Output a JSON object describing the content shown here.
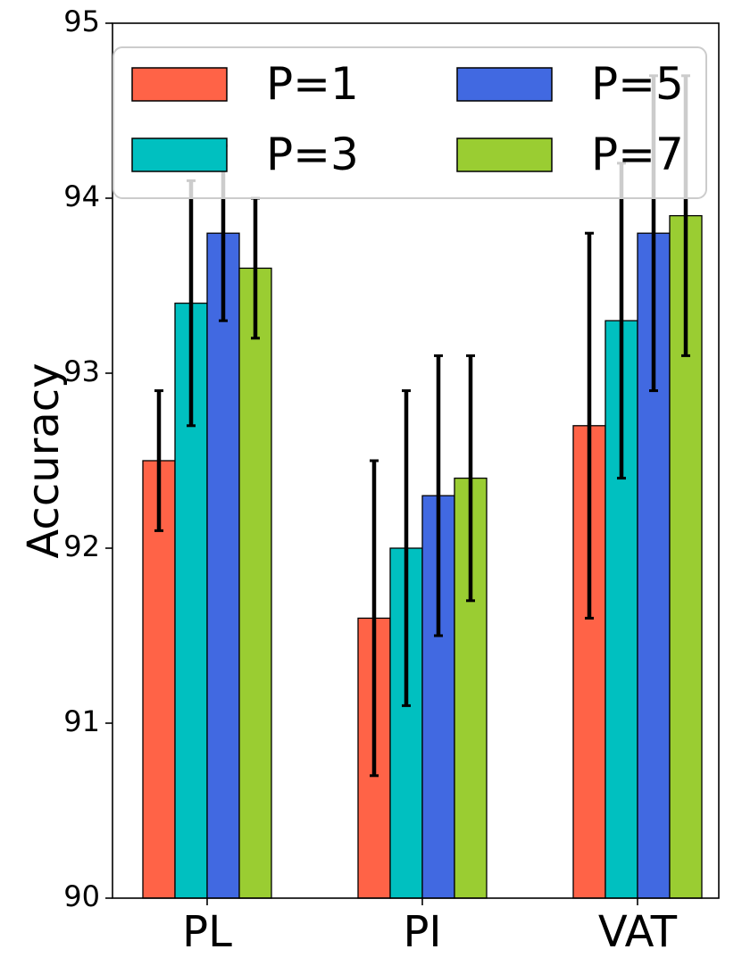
{
  "chart_data": {
    "type": "bar",
    "title": "",
    "xlabel": "",
    "ylabel": "Accuracy",
    "ylim": [
      90,
      95
    ],
    "yticks": [
      "90",
      "91",
      "92",
      "93",
      "94",
      "95"
    ],
    "categories": [
      "PL",
      "PI",
      "VAT"
    ],
    "series": [
      {
        "name": "P=1",
        "color": "#ff6347",
        "values": [
          92.5,
          91.6,
          92.7
        ],
        "errors": [
          0.4,
          0.9,
          1.1
        ]
      },
      {
        "name": "P=3",
        "color": "#00c0c0",
        "values": [
          93.4,
          92.0,
          93.3
        ],
        "errors": [
          0.7,
          0.9,
          0.9
        ]
      },
      {
        "name": "P=5",
        "color": "#4169e1",
        "values": [
          93.8,
          92.3,
          93.8
        ],
        "errors": [
          0.5,
          0.8,
          0.9
        ]
      },
      {
        "name": "P=7",
        "color": "#9acd32",
        "values": [
          93.6,
          92.4,
          93.9
        ],
        "errors": [
          0.4,
          0.7,
          0.8
        ]
      }
    ],
    "legend": {
      "position": "top",
      "columns": 2
    },
    "grid": false
  }
}
